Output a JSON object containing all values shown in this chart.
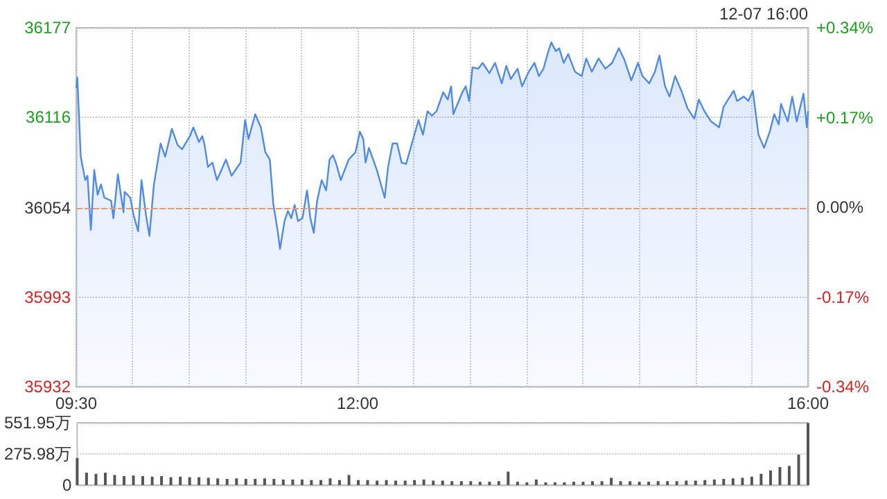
{
  "chart_data": [
    {
      "type": "area",
      "annotations": [
        "12-07 16:00"
      ],
      "color": "#4d8af0",
      "line_style": "solid",
      "marker": "none",
      "grid": true,
      "x": [
        9.5,
        9.51,
        9.54,
        9.58,
        9.6,
        9.63,
        9.66,
        9.69,
        9.72,
        9.75,
        9.81,
        9.83,
        9.87,
        9.92,
        9.93,
        9.98,
        10.01,
        10.05,
        10.08,
        10.12,
        10.15,
        10.19,
        10.25,
        10.29,
        10.35,
        10.4,
        10.44,
        10.51,
        10.54,
        10.59,
        10.62,
        10.64,
        10.67,
        10.71,
        10.75,
        10.83,
        10.88,
        10.96,
        11.0,
        11.03,
        11.09,
        11.14,
        11.18,
        11.22,
        11.25,
        11.29,
        11.31,
        11.35,
        11.38,
        11.41,
        11.44,
        11.47,
        11.51,
        11.55,
        11.58,
        11.61,
        11.64,
        11.68,
        11.72,
        11.75,
        11.78,
        11.81,
        11.85,
        11.92,
        11.98,
        12.02,
        12.05,
        12.07,
        12.1,
        12.17,
        12.24,
        12.27,
        12.31,
        12.35,
        12.39,
        12.43,
        12.5,
        12.54,
        12.58,
        12.62,
        12.66,
        12.7,
        12.76,
        12.8,
        12.83,
        12.85,
        12.93,
        12.96,
        12.99,
        13.02,
        13.07,
        13.11,
        13.17,
        13.22,
        13.28,
        13.32,
        13.36,
        13.42,
        13.46,
        13.52,
        13.57,
        13.61,
        13.65,
        13.69,
        13.72,
        13.76,
        13.79,
        13.83,
        13.87,
        13.93,
        13.99,
        14.03,
        14.08,
        14.14,
        14.2,
        14.26,
        14.32,
        14.37,
        14.43,
        14.49,
        14.53,
        14.59,
        14.64,
        14.68,
        14.73,
        14.77,
        14.82,
        14.88,
        14.93,
        14.99,
        15.03,
        15.08,
        15.14,
        15.21,
        15.25,
        15.29,
        15.34,
        15.37,
        15.43,
        15.47,
        15.51,
        15.56,
        15.61,
        15.66,
        15.7,
        15.74,
        15.76,
        15.82,
        15.86,
        15.9,
        15.96,
        15.99,
        16.0
      ],
      "values": [
        36136,
        36143,
        36089,
        36073,
        36076,
        36039,
        36080,
        36063,
        36070,
        36061,
        36059,
        36047,
        36077,
        36051,
        36065,
        36061,
        36049,
        36038,
        36073,
        36049,
        36035,
        36070,
        36098,
        36089,
        36108,
        36097,
        36094,
        36103,
        36109,
        36099,
        36103,
        36097,
        36082,
        36085,
        36073,
        36087,
        36076,
        36085,
        36114,
        36101,
        36118,
        36109,
        36092,
        36087,
        36057,
        36038,
        36026,
        36045,
        36052,
        36047,
        36056,
        36045,
        36047,
        36066,
        36047,
        36037,
        36059,
        36073,
        36066,
        36087,
        36090,
        36084,
        36073,
        36087,
        36092,
        36106,
        36101,
        36085,
        36095,
        36080,
        36061,
        36082,
        36098,
        36098,
        36085,
        36084,
        36103,
        36114,
        36104,
        36120,
        36117,
        36120,
        36133,
        36128,
        36137,
        36118,
        36133,
        36137,
        36127,
        36150,
        36149,
        36153,
        36146,
        36153,
        36139,
        36151,
        36142,
        36149,
        36137,
        36147,
        36153,
        36144,
        36149,
        36160,
        36167,
        36161,
        36163,
        36153,
        36159,
        36147,
        36144,
        36156,
        36147,
        36156,
        36149,
        36153,
        36163,
        36155,
        36141,
        36153,
        36144,
        36139,
        36147,
        36158,
        36137,
        36130,
        36144,
        36133,
        36122,
        36115,
        36128,
        36120,
        36113,
        36109,
        36123,
        36128,
        36134,
        36127,
        36130,
        36127,
        36134,
        36104,
        36095,
        36106,
        36118,
        36111,
        36125,
        36113,
        36130,
        36113,
        36132,
        36109,
        36120
      ],
      "xlim": [
        9.5,
        16
      ],
      "xticks": [
        {
          "value": 9.5,
          "label": "09:30"
        },
        {
          "value": 10,
          "label": null
        },
        {
          "value": 10.5,
          "label": null
        },
        {
          "value": 11,
          "label": null
        },
        {
          "value": 11.5,
          "label": null
        },
        {
          "value": 12,
          "label": "12:00"
        },
        {
          "value": 12.5,
          "label": null
        },
        {
          "value": 13,
          "label": null
        },
        {
          "value": 13.5,
          "label": null
        },
        {
          "value": 14,
          "label": null
        },
        {
          "value": 14.5,
          "label": null
        },
        {
          "value": 15,
          "label": null
        },
        {
          "value": 15.5,
          "label": null
        },
        {
          "value": 16,
          "label": "16:00"
        }
      ],
      "ylim": [
        35932,
        36177
      ],
      "yticks": [
        35932,
        35993,
        36054,
        36116,
        36177
      ],
      "y2lim": [
        -0.34,
        0.34
      ],
      "y2ticks": [
        {
          "value": -0.34,
          "label": "-0.34%"
        },
        {
          "value": -0.17,
          "label": "-0.17%"
        },
        {
          "value": 0,
          "label": "0.00%"
        },
        {
          "value": 0.17,
          "label": "+0.17%"
        },
        {
          "value": 0.34,
          "label": "+0.34%"
        }
      ],
      "ref_lines": [
        {
          "axis": "y",
          "value": 36054,
          "color": "#e39a72",
          "line_style": "dashed"
        }
      ]
    },
    {
      "type": "bar",
      "color": "#555555",
      "grid": "y",
      "tick_labels": "y",
      "x": [
        9.5,
        9.583,
        9.667,
        9.75,
        9.833,
        9.917,
        10,
        10.083,
        10.167,
        10.25,
        10.333,
        10.417,
        10.5,
        10.583,
        10.667,
        10.75,
        10.833,
        10.917,
        11,
        11.083,
        11.167,
        11.25,
        11.333,
        11.417,
        11.5,
        11.583,
        11.667,
        11.75,
        11.833,
        11.917,
        12,
        12.083,
        12.167,
        12.25,
        12.333,
        12.417,
        12.5,
        12.583,
        12.667,
        12.75,
        12.833,
        12.917,
        13,
        13.083,
        13.167,
        13.25,
        13.333,
        13.417,
        13.5,
        13.583,
        13.667,
        13.75,
        13.833,
        13.917,
        14,
        14.083,
        14.167,
        14.25,
        14.333,
        14.417,
        14.5,
        14.583,
        14.667,
        14.75,
        14.833,
        14.917,
        15,
        15.083,
        15.167,
        15.25,
        15.333,
        15.417,
        15.5,
        15.583,
        15.667,
        15.75,
        15.833,
        15.917,
        16
      ],
      "values": [
        240,
        110,
        100,
        110,
        90,
        80,
        85,
        80,
        75,
        80,
        70,
        75,
        70,
        70,
        65,
        60,
        55,
        60,
        55,
        55,
        60,
        55,
        50,
        50,
        50,
        45,
        45,
        60,
        45,
        90,
        45,
        45,
        40,
        45,
        40,
        40,
        45,
        50,
        40,
        40,
        35,
        35,
        35,
        30,
        30,
        35,
        120,
        30,
        25,
        50,
        25,
        25,
        25,
        30,
        30,
        35,
        35,
        65,
        35,
        35,
        30,
        30,
        35,
        35,
        35,
        40,
        40,
        45,
        50,
        55,
        60,
        65,
        75,
        100,
        130,
        160,
        170,
        270,
        550
      ],
      "xlim": [
        9.5,
        16
      ],
      "ylim": [
        0,
        551.95
      ],
      "yticks": [
        0,
        {
          "value": 275.98,
          "label": "275.98万"
        },
        {
          "value": 551.95,
          "label": "551.95万"
        }
      ]
    }
  ]
}
